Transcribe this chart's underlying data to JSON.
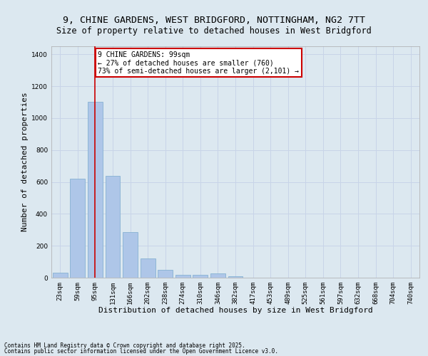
{
  "title_line1": "9, CHINE GARDENS, WEST BRIDGFORD, NOTTINGHAM, NG2 7TT",
  "title_line2": "Size of property relative to detached houses in West Bridgford",
  "xlabel": "Distribution of detached houses by size in West Bridgford",
  "ylabel": "Number of detached properties",
  "categories": [
    "23sqm",
    "59sqm",
    "95sqm",
    "131sqm",
    "166sqm",
    "202sqm",
    "238sqm",
    "274sqm",
    "310sqm",
    "346sqm",
    "382sqm",
    "417sqm",
    "453sqm",
    "489sqm",
    "525sqm",
    "561sqm",
    "597sqm",
    "632sqm",
    "668sqm",
    "704sqm",
    "740sqm"
  ],
  "values": [
    30,
    620,
    1100,
    640,
    285,
    120,
    50,
    20,
    18,
    25,
    8,
    0,
    0,
    0,
    0,
    0,
    0,
    0,
    0,
    0,
    0
  ],
  "bar_color": "#aec6e8",
  "bar_edge_color": "#7aaace",
  "property_size_bin_index": 2,
  "annotation_text": "9 CHINE GARDENS: 99sqm\n← 27% of detached houses are smaller (760)\n73% of semi-detached houses are larger (2,101) →",
  "annotation_box_color": "#ffffff",
  "annotation_box_edge_color": "#cc0000",
  "vline_color": "#cc0000",
  "grid_color": "#c8d4e8",
  "background_color": "#dce8f0",
  "footer_line1": "Contains HM Land Registry data © Crown copyright and database right 2025.",
  "footer_line2": "Contains public sector information licensed under the Open Government Licence v3.0.",
  "ylim": [
    0,
    1450
  ],
  "yticks": [
    0,
    200,
    400,
    600,
    800,
    1000,
    1200,
    1400
  ],
  "title_fontsize": 9.5,
  "subtitle_fontsize": 8.5,
  "axis_label_fontsize": 8,
  "tick_fontsize": 6.5,
  "footer_fontsize": 5.5
}
